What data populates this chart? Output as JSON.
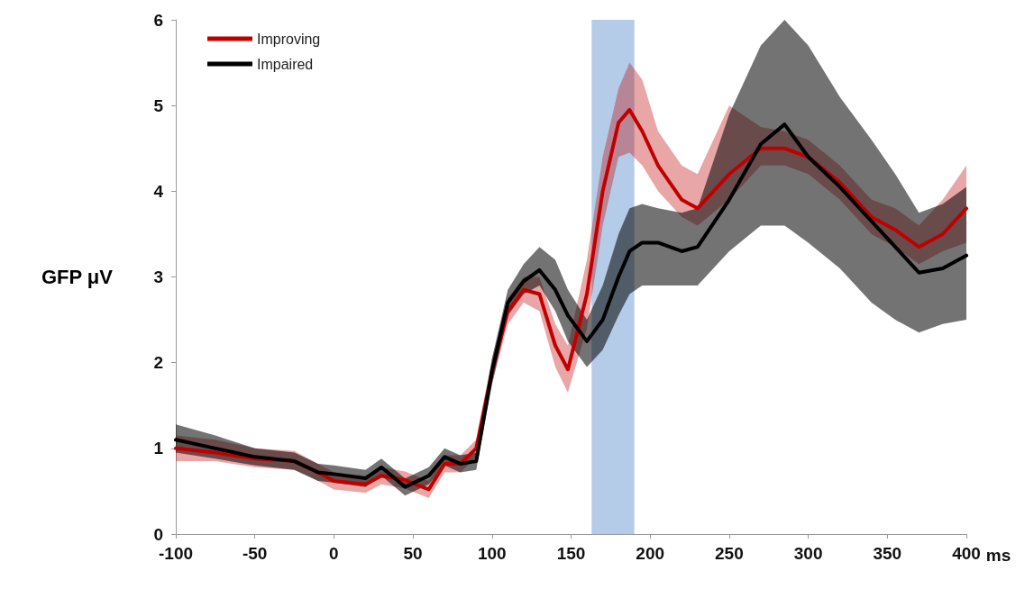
{
  "chart_data": {
    "type": "line",
    "xlabel": "ms",
    "ylabel": "GFP μV",
    "xlim": [
      -100,
      400
    ],
    "xticks": [
      -100,
      -50,
      0,
      50,
      100,
      150,
      200,
      250,
      300,
      350,
      400
    ],
    "ylim": [
      0,
      6
    ],
    "yticks": [
      0,
      1,
      2,
      3,
      4,
      5,
      6
    ],
    "grid": false,
    "legend": "top left",
    "marker": "none",
    "line_style": "solid",
    "x": [
      -100,
      -75,
      -50,
      -25,
      -10,
      0,
      20,
      30,
      45,
      60,
      70,
      80,
      90,
      100,
      110,
      120,
      130,
      140,
      148,
      160,
      170,
      180,
      187,
      195,
      205,
      220,
      230,
      250,
      270,
      285,
      300,
      320,
      340,
      355,
      370,
      385,
      400
    ],
    "bands": [
      {
        "axis": "x",
        "from": 163,
        "to": 190,
        "color": "#b4cce8"
      }
    ],
    "series": [
      {
        "name": "Improving",
        "color": "#c00000",
        "values": [
          1.0,
          0.95,
          0.88,
          0.85,
          0.72,
          0.62,
          0.58,
          0.68,
          0.63,
          0.52,
          0.82,
          0.82,
          1.0,
          1.9,
          2.6,
          2.85,
          2.8,
          2.2,
          1.92,
          2.8,
          4.0,
          4.8,
          4.95,
          4.7,
          4.3,
          3.9,
          3.8,
          4.2,
          4.5,
          4.5,
          4.4,
          4.1,
          3.7,
          3.55,
          3.35,
          3.5,
          3.8
        ],
        "lower": [
          0.85,
          0.85,
          0.78,
          0.75,
          0.62,
          0.52,
          0.48,
          0.58,
          0.53,
          0.42,
          0.72,
          0.72,
          0.9,
          1.75,
          2.45,
          2.7,
          2.6,
          1.95,
          1.65,
          2.4,
          3.6,
          4.4,
          4.45,
          4.3,
          4.0,
          3.7,
          3.6,
          3.9,
          4.3,
          4.3,
          4.2,
          3.9,
          3.5,
          3.35,
          3.15,
          3.3,
          3.4
        ],
        "upper": [
          1.15,
          1.1,
          1.0,
          0.97,
          0.82,
          0.72,
          0.68,
          0.78,
          0.73,
          0.62,
          0.92,
          0.92,
          1.1,
          2.05,
          2.75,
          3.0,
          3.0,
          2.45,
          2.2,
          3.2,
          4.4,
          5.2,
          5.5,
          5.3,
          4.7,
          4.3,
          4.2,
          5.0,
          4.75,
          4.7,
          4.6,
          4.3,
          3.9,
          3.8,
          3.6,
          3.9,
          4.3
        ]
      },
      {
        "name": "Impaired",
        "color": "#000000",
        "values": [
          1.1,
          1.0,
          0.9,
          0.85,
          0.72,
          0.7,
          0.65,
          0.78,
          0.55,
          0.68,
          0.9,
          0.82,
          0.85,
          1.9,
          2.7,
          2.95,
          3.08,
          2.85,
          2.55,
          2.25,
          2.5,
          3.0,
          3.3,
          3.4,
          3.4,
          3.3,
          3.35,
          3.9,
          4.55,
          4.78,
          4.4,
          4.05,
          3.65,
          3.35,
          3.05,
          3.1,
          3.25
        ],
        "lower": [
          0.95,
          0.88,
          0.8,
          0.75,
          0.62,
          0.6,
          0.55,
          0.68,
          0.45,
          0.58,
          0.8,
          0.72,
          0.75,
          1.75,
          2.55,
          2.8,
          2.9,
          2.6,
          2.25,
          1.95,
          2.15,
          2.55,
          2.8,
          2.9,
          2.9,
          2.9,
          2.9,
          3.3,
          3.6,
          3.6,
          3.4,
          3.1,
          2.7,
          2.5,
          2.35,
          2.45,
          2.5
        ],
        "upper": [
          1.28,
          1.15,
          1.0,
          0.95,
          0.82,
          0.8,
          0.75,
          0.88,
          0.65,
          0.78,
          1.0,
          0.92,
          0.95,
          2.05,
          2.85,
          3.15,
          3.35,
          3.2,
          2.85,
          2.5,
          2.9,
          3.5,
          3.8,
          3.85,
          3.8,
          3.75,
          3.8,
          4.9,
          5.7,
          6.0,
          5.7,
          5.1,
          4.6,
          4.2,
          3.75,
          3.85,
          4.05
        ]
      }
    ]
  }
}
